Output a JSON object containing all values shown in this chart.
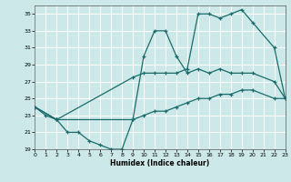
{
  "bg_color": "#cce8e8",
  "grid_color": "#ffffff",
  "line_color": "#1a6b6b",
  "xlabel": "Humidex (Indice chaleur)",
  "ylim": [
    19,
    36
  ],
  "xlim": [
    0,
    23
  ],
  "yticks": [
    19,
    21,
    23,
    25,
    27,
    29,
    31,
    33,
    35
  ],
  "xticks": [
    0,
    1,
    2,
    3,
    4,
    5,
    6,
    7,
    8,
    9,
    10,
    11,
    12,
    13,
    14,
    15,
    16,
    17,
    18,
    19,
    20,
    21,
    22,
    23
  ],
  "line1_x": [
    0,
    1,
    2,
    3,
    4,
    5,
    6,
    7,
    8,
    9,
    10,
    11,
    12,
    13,
    14,
    15,
    16,
    17,
    18,
    19,
    20,
    22,
    23
  ],
  "line1_y": [
    24,
    23,
    22.5,
    21,
    21,
    20,
    19.5,
    19,
    19,
    22.5,
    30,
    33,
    33,
    30,
    28,
    28.5,
    28,
    28.5,
    28,
    28,
    28,
    27,
    25
  ],
  "line2_x": [
    0,
    2,
    9,
    10,
    11,
    12,
    13,
    14,
    15,
    16,
    17,
    18,
    19,
    20,
    22,
    23
  ],
  "line2_y": [
    24,
    22.5,
    27.5,
    28,
    28,
    28,
    28,
    28.5,
    35,
    35,
    34.5,
    35,
    35.5,
    34,
    31,
    25
  ],
  "line3_x": [
    0,
    2,
    9,
    10,
    11,
    12,
    13,
    14,
    15,
    16,
    17,
    18,
    19,
    20,
    22,
    23
  ],
  "line3_y": [
    24,
    22.5,
    22.5,
    23,
    23.5,
    23.5,
    24,
    24.5,
    25,
    25,
    25.5,
    25.5,
    26,
    26,
    25,
    25
  ]
}
